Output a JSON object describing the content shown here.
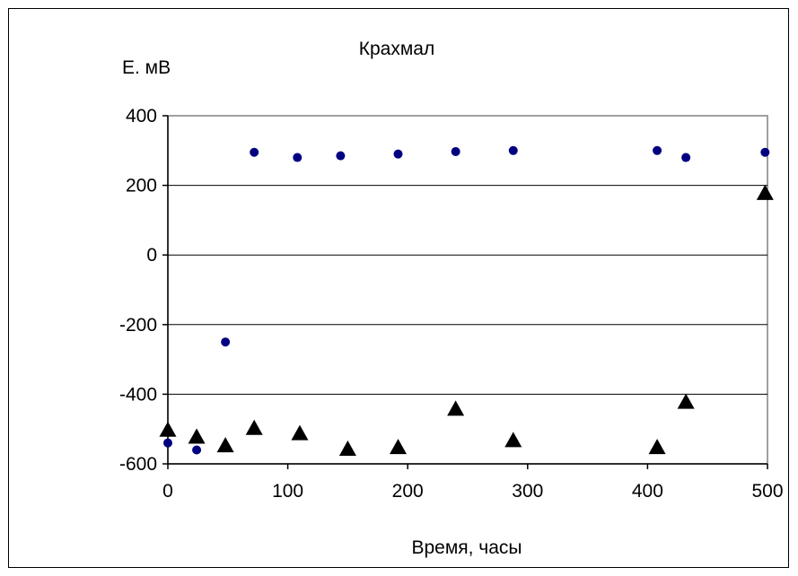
{
  "chart_data": {
    "type": "scatter",
    "title": "Крахмал",
    "xlabel": "Время, часы",
    "ylabel": "Е. мВ",
    "xlim": [
      0,
      500
    ],
    "ylim": [
      -600,
      400
    ],
    "xticks": [
      0,
      100,
      200,
      300,
      400,
      500
    ],
    "yticks": [
      400,
      200,
      0,
      -200,
      -400,
      -600
    ],
    "xtick_labels": [
      "0",
      "100",
      "200",
      "300",
      "400",
      "500"
    ],
    "ytick_labels": [
      "400",
      "200",
      "0",
      "-200",
      "-400",
      "-600"
    ],
    "grid": "horizontal",
    "legend": "none",
    "series": [
      {
        "marker": "circle",
        "color": "#000080",
        "points": [
          [
            0,
            -540
          ],
          [
            24,
            -560
          ],
          [
            48,
            -250
          ],
          [
            72,
            295
          ],
          [
            108,
            280
          ],
          [
            144,
            285
          ],
          [
            192,
            290
          ],
          [
            240,
            297
          ],
          [
            288,
            300
          ],
          [
            408,
            300
          ],
          [
            432,
            280
          ],
          [
            498,
            295
          ]
        ]
      },
      {
        "marker": "triangle",
        "color": "#000000",
        "points": [
          [
            0,
            -500
          ],
          [
            24,
            -520
          ],
          [
            48,
            -545
          ],
          [
            72,
            -495
          ],
          [
            110,
            -510
          ],
          [
            150,
            -555
          ],
          [
            192,
            -550
          ],
          [
            240,
            -440
          ],
          [
            288,
            -530
          ],
          [
            408,
            -550
          ],
          [
            432,
            -420
          ],
          [
            498,
            180
          ]
        ]
      }
    ]
  }
}
